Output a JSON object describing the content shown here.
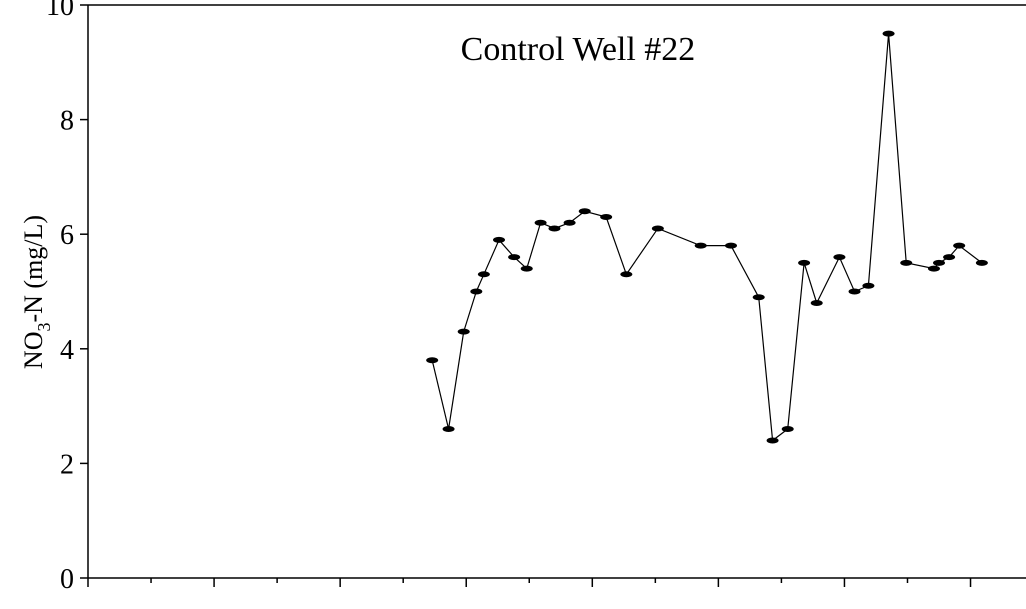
{
  "chart_data": {
    "type": "line",
    "title": "Control Well #22",
    "ylabel": [
      "NO",
      "3",
      "-N (mg/L)"
    ],
    "x": [
      27.3,
      28.6,
      29.8,
      30.8,
      31.4,
      32.6,
      33.8,
      34.8,
      35.9,
      37.0,
      38.2,
      39.4,
      41.1,
      42.7,
      45.2,
      48.6,
      51.0,
      53.2,
      54.3,
      55.5,
      56.8,
      57.8,
      59.6,
      60.8,
      61.9,
      63.5,
      64.9,
      67.1,
      67.5,
      68.3,
      69.1,
      70.9
    ],
    "values": [
      3.8,
      2.6,
      4.3,
      5.0,
      5.3,
      5.9,
      5.6,
      5.4,
      6.2,
      6.1,
      6.2,
      6.4,
      6.3,
      5.3,
      6.1,
      5.8,
      5.8,
      4.9,
      2.4,
      2.6,
      5.5,
      4.8,
      5.6,
      5.0,
      5.1,
      9.5,
      5.5,
      5.4,
      5.5,
      5.6,
      5.8,
      5.5
    ],
    "color": "#000000",
    "xlim": [
      0,
      74.4
    ],
    "xticks": [
      0,
      5,
      10,
      15,
      20,
      25,
      30,
      35,
      40,
      45,
      50,
      55,
      60,
      65,
      70
    ],
    "ylim": [
      0,
      10
    ],
    "yticks": [
      0,
      2,
      4,
      6,
      8,
      10
    ]
  }
}
